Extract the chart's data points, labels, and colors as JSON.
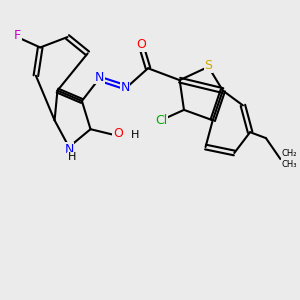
{
  "bg_color": "#ebebeb",
  "bond_color": "#000000",
  "line_width": 1.5,
  "atom_colors": {
    "S": "#ccaa00",
    "N": "#0000ff",
    "O": "#ff0000",
    "F": "#cc00cc",
    "Cl": "#00aa00",
    "C": "#000000",
    "H": "#000000"
  },
  "font_size": 9,
  "fig_width": 3.0,
  "fig_height": 3.0
}
